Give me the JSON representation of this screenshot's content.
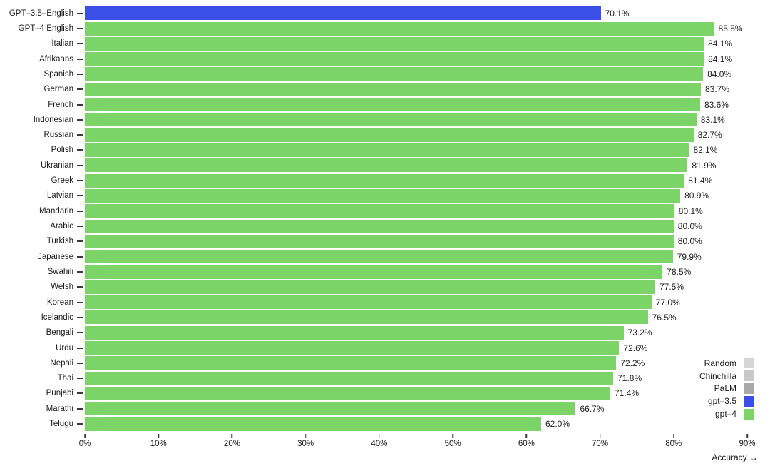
{
  "chart_data": {
    "type": "bar",
    "orientation": "horizontal",
    "title": "",
    "xlabel": "Accuracy →",
    "ylabel": "",
    "xlim": [
      0,
      93.1
    ],
    "x_axis_ticks": [
      "0%",
      "10%",
      "20%",
      "30%",
      "40%",
      "50%",
      "60%",
      "70%",
      "80%",
      "90%"
    ],
    "x_axis_tick_values": [
      0,
      10,
      20,
      30,
      40,
      50,
      60,
      70,
      80,
      90
    ],
    "grid": false,
    "legend_position": "lower right",
    "categories": [
      "GPT–3.5–English",
      "GPT–4 English",
      "Italian",
      "Afrikaans",
      "Spanish",
      "German",
      "French",
      "Indonesian",
      "Russian",
      "Polish",
      "Ukranian",
      "Greek",
      "Latvian",
      "Mandarin",
      "Arabic",
      "Turkish",
      "Japanese",
      "Swahili",
      "Welsh",
      "Korean",
      "Icelandic",
      "Bengali",
      "Urdu",
      "Nepali",
      "Thai",
      "Punjabi",
      "Marathi",
      "Telugu"
    ],
    "values": [
      70.1,
      85.5,
      84.1,
      84.1,
      84.0,
      83.7,
      83.6,
      83.1,
      82.7,
      82.1,
      81.9,
      81.4,
      80.9,
      80.1,
      80.0,
      80.0,
      79.9,
      78.5,
      77.5,
      77.0,
      76.5,
      73.2,
      72.6,
      72.2,
      71.8,
      71.4,
      66.7,
      62.0
    ],
    "value_labels": [
      "70.1%",
      "85.5%",
      "84.1%",
      "84.1%",
      "84.0%",
      "83.7%",
      "83.6%",
      "83.1%",
      "82.7%",
      "82.1%",
      "81.9%",
      "81.4%",
      "80.9%",
      "80.1%",
      "80.0%",
      "80.0%",
      "79.9%",
      "78.5%",
      "77.5%",
      "77.0%",
      "76.5%",
      "73.2%",
      "72.6%",
      "72.2%",
      "71.8%",
      "71.4%",
      "66.7%",
      "62.0%"
    ],
    "bar_series": [
      "gpt-3.5",
      "gpt-4",
      "gpt-4",
      "gpt-4",
      "gpt-4",
      "gpt-4",
      "gpt-4",
      "gpt-4",
      "gpt-4",
      "gpt-4",
      "gpt-4",
      "gpt-4",
      "gpt-4",
      "gpt-4",
      "gpt-4",
      "gpt-4",
      "gpt-4",
      "gpt-4",
      "gpt-4",
      "gpt-4",
      "gpt-4",
      "gpt-4",
      "gpt-4",
      "gpt-4",
      "gpt-4",
      "gpt-4",
      "gpt-4",
      "gpt-4"
    ],
    "colors": {
      "gpt-3.5": "#3b4ee8",
      "gpt-4": "#7cd468"
    },
    "legend": [
      {
        "label": "Random",
        "color": "#d6d6d6"
      },
      {
        "label": "Chinchilla",
        "color": "#c9c9c9"
      },
      {
        "label": "PaLM",
        "color": "#a9a9a9"
      },
      {
        "label": "gpt–3.5",
        "color": "#3b4ee8"
      },
      {
        "label": "gpt–4",
        "color": "#7cd468"
      }
    ]
  }
}
